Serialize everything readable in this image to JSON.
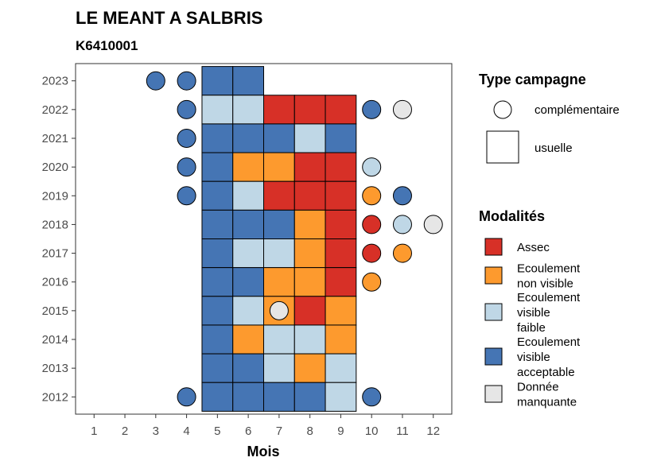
{
  "chart_data": {
    "type": "heatmap",
    "title": "LE MEANT A SALBRIS",
    "subtitle": "K6410001",
    "xlabel": "Mois",
    "ylabel": "",
    "x_ticks": [
      "1",
      "2",
      "3",
      "4",
      "5",
      "6",
      "7",
      "8",
      "9",
      "10",
      "11",
      "12"
    ],
    "y_ticks": [
      "2012",
      "2013",
      "2014",
      "2015",
      "2016",
      "2017",
      "2018",
      "2019",
      "2020",
      "2021",
      "2022",
      "2023"
    ],
    "grid": false,
    "legend_position": "right",
    "colors": {
      "Assec": "#d73027",
      "Ecoulement non visible": "#fd9a2e",
      "Ecoulement visible faible": "#bfd7e6",
      "Ecoulement visible acceptable": "#4575b4",
      "Donnée manquante": "#e6e6e6"
    },
    "legend_type": {
      "title": "Type campagne",
      "items": [
        {
          "label": "complémentaire",
          "shape": "circle"
        },
        {
          "label": "usuelle",
          "shape": "square"
        }
      ]
    },
    "legend_modalites": {
      "title": "Modalités",
      "items": [
        {
          "key": "Assec",
          "lines": [
            "Assec"
          ]
        },
        {
          "key": "Ecoulement non visible",
          "lines": [
            "Ecoulement",
            "non visible"
          ]
        },
        {
          "key": "Ecoulement visible faible",
          "lines": [
            "Ecoulement",
            "visible",
            "faible"
          ]
        },
        {
          "key": "Ecoulement visible acceptable",
          "lines": [
            "Ecoulement",
            "visible",
            "acceptable"
          ]
        },
        {
          "key": "Donnée manquante",
          "lines": [
            "Donnée",
            "manquante"
          ]
        }
      ]
    },
    "usuelle": [
      {
        "year": 2023,
        "month": 5,
        "modalite": "Ecoulement visible acceptable"
      },
      {
        "year": 2023,
        "month": 6,
        "modalite": "Ecoulement visible acceptable"
      },
      {
        "year": 2022,
        "month": 5,
        "modalite": "Ecoulement visible faible"
      },
      {
        "year": 2022,
        "month": 6,
        "modalite": "Ecoulement visible faible"
      },
      {
        "year": 2022,
        "month": 7,
        "modalite": "Assec"
      },
      {
        "year": 2022,
        "month": 8,
        "modalite": "Assec"
      },
      {
        "year": 2022,
        "month": 9,
        "modalite": "Assec"
      },
      {
        "year": 2021,
        "month": 5,
        "modalite": "Ecoulement visible acceptable"
      },
      {
        "year": 2021,
        "month": 6,
        "modalite": "Ecoulement visible acceptable"
      },
      {
        "year": 2021,
        "month": 7,
        "modalite": "Ecoulement visible acceptable"
      },
      {
        "year": 2021,
        "month": 8,
        "modalite": "Ecoulement visible faible"
      },
      {
        "year": 2021,
        "month": 9,
        "modalite": "Ecoulement visible acceptable"
      },
      {
        "year": 2020,
        "month": 5,
        "modalite": "Ecoulement visible acceptable"
      },
      {
        "year": 2020,
        "month": 6,
        "modalite": "Ecoulement non visible"
      },
      {
        "year": 2020,
        "month": 7,
        "modalite": "Ecoulement non visible"
      },
      {
        "year": 2020,
        "month": 8,
        "modalite": "Assec"
      },
      {
        "year": 2020,
        "month": 9,
        "modalite": "Assec"
      },
      {
        "year": 2019,
        "month": 5,
        "modalite": "Ecoulement visible acceptable"
      },
      {
        "year": 2019,
        "month": 6,
        "modalite": "Ecoulement visible faible"
      },
      {
        "year": 2019,
        "month": 7,
        "modalite": "Assec"
      },
      {
        "year": 2019,
        "month": 8,
        "modalite": "Assec"
      },
      {
        "year": 2019,
        "month": 9,
        "modalite": "Assec"
      },
      {
        "year": 2018,
        "month": 5,
        "modalite": "Ecoulement visible acceptable"
      },
      {
        "year": 2018,
        "month": 6,
        "modalite": "Ecoulement visible acceptable"
      },
      {
        "year": 2018,
        "month": 7,
        "modalite": "Ecoulement visible acceptable"
      },
      {
        "year": 2018,
        "month": 8,
        "modalite": "Ecoulement non visible"
      },
      {
        "year": 2018,
        "month": 9,
        "modalite": "Assec"
      },
      {
        "year": 2017,
        "month": 5,
        "modalite": "Ecoulement visible acceptable"
      },
      {
        "year": 2017,
        "month": 6,
        "modalite": "Ecoulement visible faible"
      },
      {
        "year": 2017,
        "month": 7,
        "modalite": "Ecoulement visible faible"
      },
      {
        "year": 2017,
        "month": 8,
        "modalite": "Ecoulement non visible"
      },
      {
        "year": 2017,
        "month": 9,
        "modalite": "Assec"
      },
      {
        "year": 2016,
        "month": 5,
        "modalite": "Ecoulement visible acceptable"
      },
      {
        "year": 2016,
        "month": 6,
        "modalite": "Ecoulement visible acceptable"
      },
      {
        "year": 2016,
        "month": 7,
        "modalite": "Ecoulement non visible"
      },
      {
        "year": 2016,
        "month": 8,
        "modalite": "Ecoulement non visible"
      },
      {
        "year": 2016,
        "month": 9,
        "modalite": "Assec"
      },
      {
        "year": 2015,
        "month": 5,
        "modalite": "Ecoulement visible acceptable"
      },
      {
        "year": 2015,
        "month": 6,
        "modalite": "Ecoulement visible faible"
      },
      {
        "year": 2015,
        "month": 7,
        "modalite": "Ecoulement non visible"
      },
      {
        "year": 2015,
        "month": 8,
        "modalite": "Assec"
      },
      {
        "year": 2015,
        "month": 9,
        "modalite": "Ecoulement non visible"
      },
      {
        "year": 2014,
        "month": 5,
        "modalite": "Ecoulement visible acceptable"
      },
      {
        "year": 2014,
        "month": 6,
        "modalite": "Ecoulement non visible"
      },
      {
        "year": 2014,
        "month": 7,
        "modalite": "Ecoulement visible faible"
      },
      {
        "year": 2014,
        "month": 8,
        "modalite": "Ecoulement visible faible"
      },
      {
        "year": 2014,
        "month": 9,
        "modalite": "Ecoulement non visible"
      },
      {
        "year": 2013,
        "month": 5,
        "modalite": "Ecoulement visible acceptable"
      },
      {
        "year": 2013,
        "month": 6,
        "modalite": "Ecoulement visible acceptable"
      },
      {
        "year": 2013,
        "month": 7,
        "modalite": "Ecoulement visible faible"
      },
      {
        "year": 2013,
        "month": 8,
        "modalite": "Ecoulement non visible"
      },
      {
        "year": 2013,
        "month": 9,
        "modalite": "Ecoulement visible faible"
      },
      {
        "year": 2012,
        "month": 5,
        "modalite": "Ecoulement visible acceptable"
      },
      {
        "year": 2012,
        "month": 6,
        "modalite": "Ecoulement visible acceptable"
      },
      {
        "year": 2012,
        "month": 7,
        "modalite": "Ecoulement visible acceptable"
      },
      {
        "year": 2012,
        "month": 8,
        "modalite": "Ecoulement visible acceptable"
      },
      {
        "year": 2012,
        "month": 9,
        "modalite": "Ecoulement visible faible"
      }
    ],
    "complementaire": [
      {
        "year": 2023,
        "month": 3,
        "modalite": "Ecoulement visible acceptable"
      },
      {
        "year": 2023,
        "month": 4,
        "modalite": "Ecoulement visible acceptable"
      },
      {
        "year": 2022,
        "month": 4,
        "modalite": "Ecoulement visible acceptable"
      },
      {
        "year": 2022,
        "month": 10,
        "modalite": "Ecoulement visible acceptable"
      },
      {
        "year": 2022,
        "month": 11,
        "modalite": "Donnée manquante"
      },
      {
        "year": 2021,
        "month": 4,
        "modalite": "Ecoulement visible acceptable"
      },
      {
        "year": 2020,
        "month": 4,
        "modalite": "Ecoulement visible acceptable"
      },
      {
        "year": 2020,
        "month": 10,
        "modalite": "Ecoulement visible faible"
      },
      {
        "year": 2019,
        "month": 4,
        "modalite": "Ecoulement visible acceptable"
      },
      {
        "year": 2019,
        "month": 10,
        "modalite": "Ecoulement non visible"
      },
      {
        "year": 2019,
        "month": 11,
        "modalite": "Ecoulement visible acceptable"
      },
      {
        "year": 2018,
        "month": 10,
        "modalite": "Assec"
      },
      {
        "year": 2018,
        "month": 11,
        "modalite": "Ecoulement visible faible"
      },
      {
        "year": 2018,
        "month": 12,
        "modalite": "Donnée manquante"
      },
      {
        "year": 2017,
        "month": 10,
        "modalite": "Assec"
      },
      {
        "year": 2017,
        "month": 11,
        "modalite": "Ecoulement non visible"
      },
      {
        "year": 2016,
        "month": 10,
        "modalite": "Ecoulement non visible"
      },
      {
        "year": 2015,
        "month": 7,
        "modalite": "Donnée manquante"
      },
      {
        "year": 2012,
        "month": 4,
        "modalite": "Ecoulement visible acceptable"
      },
      {
        "year": 2012,
        "month": 10,
        "modalite": "Ecoulement visible acceptable"
      }
    ]
  }
}
